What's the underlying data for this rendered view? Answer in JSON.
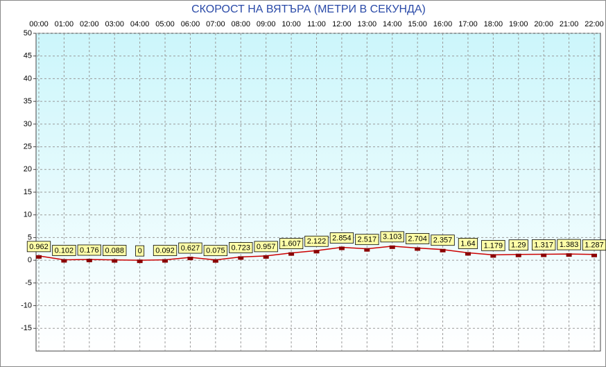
{
  "chart_data": {
    "type": "line",
    "title": "СКОРОСТ НА ВЯТЪРА (МЕТРИ В СЕКУНДА)",
    "categories": [
      "00:00",
      "01:00",
      "02:00",
      "03:00",
      "04:00",
      "05:00",
      "06:00",
      "07:00",
      "08:00",
      "09:00",
      "10:00",
      "11:00",
      "12:00",
      "13:00",
      "14:00",
      "15:00",
      "16:00",
      "17:00",
      "18:00",
      "19:00",
      "20:00",
      "21:00",
      "22:00"
    ],
    "values": [
      0.962,
      0.102,
      0.176,
      0.088,
      0,
      0.092,
      0.627,
      0.075,
      0.723,
      0.957,
      1.607,
      2.122,
      2.854,
      2.517,
      3.103,
      2.704,
      2.357,
      1.64,
      1.179,
      1.29,
      1.317,
      1.383,
      1.287
    ],
    "color": "#cc0000",
    "marker_color": "#8b0000",
    "ylim": [
      -20,
      50
    ],
    "yticks": [
      50,
      45,
      40,
      35,
      30,
      25,
      20,
      15,
      10,
      5,
      0,
      -5,
      -10,
      -15
    ],
    "grid": true
  }
}
